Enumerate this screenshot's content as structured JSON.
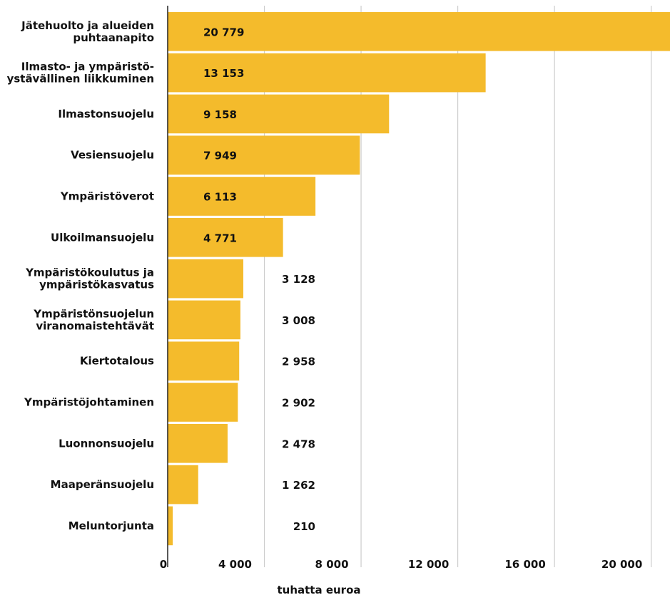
{
  "chart_data": {
    "type": "bar",
    "orientation": "horizontal",
    "categories": [
      "Jätehuolto ja alueiden puhtaanapito",
      "Ilmasto- ja ympäristö-ystävällinen liikkuminen",
      "Ilmastonsuojelu",
      "Vesiensuojelu",
      "Ympäristöverot",
      "Ulkoilmansuojelu",
      "Ympäristökoulutus ja ympäristökasvatus",
      "Ympäristönsuojelun viranomaistehtävät",
      "Kiertotalous",
      "Ympäristöjohtaminen",
      "Luonnonsuojelu",
      "Maaperänsuojelu",
      "Meluntorjunta"
    ],
    "category_lines": [
      [
        "Jätehuolto ja alueiden",
        "puhtaanapito"
      ],
      [
        "Ilmasto- ja ympäristö-",
        "ystävällinen liikkuminen"
      ],
      [
        "Ilmastonsuojelu"
      ],
      [
        "Vesiensuojelu"
      ],
      [
        "Ympäristöverot"
      ],
      [
        "Ulkoilmansuojelu"
      ],
      [
        "Ympäristökoulutus ja",
        "ympäristökasvatus"
      ],
      [
        "Ympäristönsuojelun",
        "viranomaistehtävät"
      ],
      [
        "Kiertotalous"
      ],
      [
        "Ympäristöjohtaminen"
      ],
      [
        "Luonnonsuojelu"
      ],
      [
        "Maaperänsuojelu"
      ],
      [
        "Meluntorjunta"
      ]
    ],
    "values": [
      20779,
      13153,
      9158,
      7949,
      6113,
      4771,
      3128,
      3008,
      2958,
      2902,
      2478,
      1262,
      210
    ],
    "value_labels": [
      "20 779",
      "13 153",
      "9 158",
      "7 949",
      "6 113",
      "4 771",
      "3 128",
      "3 008",
      "2 958",
      "2 902",
      "2 478",
      "1 262",
      "210"
    ],
    "xlim": [
      0,
      20779
    ],
    "xticks": [
      0,
      4000,
      8000,
      12000,
      16000,
      20000
    ],
    "xtick_labels": [
      "0",
      "4 000",
      "8 000",
      "12 000",
      "16 000",
      "20 000"
    ],
    "xlabel": "tuhatta euroa",
    "grid": "vertical",
    "bar_color": "#F4BB2C",
    "grid_color": "#CCCCCC",
    "axis_color": "#222222"
  }
}
